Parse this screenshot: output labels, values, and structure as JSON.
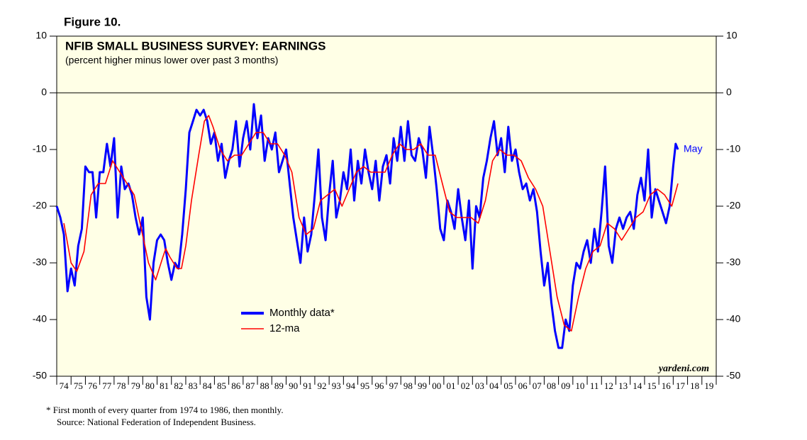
{
  "chart_data": {
    "type": "line",
    "figure_label": "Figure 10.",
    "title": "NFIB SMALL BUSINESS SURVEY: EARNINGS",
    "subtitle": "(percent higher minus lower over past 3 months)",
    "annotation": "May",
    "source_mark": "yardeni.com",
    "footnote": "*   First month of every quarter from 1974 to 1986, then monthly.",
    "source": "Source: National Federation of Independent Business.",
    "xlim": [
      1974,
      2020
    ],
    "ylim": [
      -50,
      10
    ],
    "yticks": [
      10,
      0,
      -10,
      -20,
      -30,
      -40,
      -50
    ],
    "xticks": [
      {
        "value": 1974,
        "label": "74"
      },
      {
        "value": 1975,
        "label": "75"
      },
      {
        "value": 1976,
        "label": "76"
      },
      {
        "value": 1977,
        "label": "77"
      },
      {
        "value": 1978,
        "label": "78"
      },
      {
        "value": 1979,
        "label": "79"
      },
      {
        "value": 1980,
        "label": "80"
      },
      {
        "value": 1981,
        "label": "81"
      },
      {
        "value": 1982,
        "label": "82"
      },
      {
        "value": 1983,
        "label": "83"
      },
      {
        "value": 1984,
        "label": "84"
      },
      {
        "value": 1985,
        "label": "85"
      },
      {
        "value": 1986,
        "label": "86"
      },
      {
        "value": 1987,
        "label": "87"
      },
      {
        "value": 1988,
        "label": "88"
      },
      {
        "value": 1989,
        "label": "89"
      },
      {
        "value": 1990,
        "label": "90"
      },
      {
        "value": 1991,
        "label": "91"
      },
      {
        "value": 1992,
        "label": "92"
      },
      {
        "value": 1993,
        "label": "93"
      },
      {
        "value": 1994,
        "label": "94"
      },
      {
        "value": 1995,
        "label": "95"
      },
      {
        "value": 1996,
        "label": "96"
      },
      {
        "value": 1997,
        "label": "97"
      },
      {
        "value": 1998,
        "label": "98"
      },
      {
        "value": 1999,
        "label": "99"
      },
      {
        "value": 2000,
        "label": "00"
      },
      {
        "value": 2001,
        "label": "01"
      },
      {
        "value": 2002,
        "label": "02"
      },
      {
        "value": 2003,
        "label": "03"
      },
      {
        "value": 2004,
        "label": "04"
      },
      {
        "value": 2005,
        "label": "05"
      },
      {
        "value": 2006,
        "label": "06"
      },
      {
        "value": 2007,
        "label": "07"
      },
      {
        "value": 2008,
        "label": "08"
      },
      {
        "value": 2009,
        "label": "09"
      },
      {
        "value": 2010,
        "label": "10"
      },
      {
        "value": 2011,
        "label": "11"
      },
      {
        "value": 2012,
        "label": "12"
      },
      {
        "value": 2013,
        "label": "13"
      },
      {
        "value": 2014,
        "label": "14"
      },
      {
        "value": 2015,
        "label": "15"
      },
      {
        "value": 2016,
        "label": "16"
      },
      {
        "value": 2017,
        "label": "17"
      },
      {
        "value": 2018,
        "label": "18"
      },
      {
        "value": 2019,
        "label": "19"
      }
    ],
    "series": [
      {
        "name": "Monthly data*",
        "color": "#0000ff",
        "x": [
          1974,
          1974.25,
          1974.5,
          1974.75,
          1975,
          1975.25,
          1975.5,
          1975.75,
          1976,
          1976.25,
          1976.5,
          1976.75,
          1977,
          1977.25,
          1977.5,
          1977.75,
          1978,
          1978.25,
          1978.5,
          1978.75,
          1979,
          1979.25,
          1979.5,
          1979.75,
          1980,
          1980.25,
          1980.5,
          1980.75,
          1981,
          1981.25,
          1981.5,
          1981.75,
          1982,
          1982.25,
          1982.5,
          1982.75,
          1983,
          1983.25,
          1983.5,
          1983.75,
          1984,
          1984.25,
          1984.5,
          1984.75,
          1985,
          1985.25,
          1985.5,
          1985.75,
          1986,
          1986.25,
          1986.5,
          1986.75,
          1987,
          1987.25,
          1987.5,
          1987.75,
          1988,
          1988.25,
          1988.5,
          1988.75,
          1989,
          1989.25,
          1989.5,
          1989.75,
          1990,
          1990.25,
          1990.5,
          1990.75,
          1991,
          1991.25,
          1991.5,
          1991.75,
          1992,
          1992.25,
          1992.5,
          1992.75,
          1993,
          1993.25,
          1993.5,
          1993.75,
          1994,
          1994.25,
          1994.5,
          1994.75,
          1995,
          1995.25,
          1995.5,
          1995.75,
          1996,
          1996.25,
          1996.5,
          1996.75,
          1997,
          1997.25,
          1997.5,
          1997.75,
          1998,
          1998.25,
          1998.5,
          1998.75,
          1999,
          1999.25,
          1999.5,
          1999.75,
          2000,
          2000.25,
          2000.5,
          2000.75,
          2001,
          2001.25,
          2001.5,
          2001.75,
          2002,
          2002.25,
          2002.5,
          2002.75,
          2003,
          2003.25,
          2003.5,
          2003.75,
          2004,
          2004.25,
          2004.5,
          2004.75,
          2005,
          2005.25,
          2005.5,
          2005.75,
          2006,
          2006.25,
          2006.5,
          2006.75,
          2007,
          2007.25,
          2007.5,
          2007.75,
          2008,
          2008.25,
          2008.5,
          2008.75,
          2009,
          2009.25,
          2009.5,
          2009.75,
          2010,
          2010.25,
          2010.5,
          2010.75,
          2011,
          2011.25,
          2011.5,
          2011.75,
          2012,
          2012.25,
          2012.5,
          2012.75,
          2013,
          2013.25,
          2013.5,
          2013.75,
          2014,
          2014.25,
          2014.5,
          2014.75,
          2015,
          2015.25,
          2015.5,
          2015.75,
          2016,
          2016.25,
          2016.5,
          2016.75,
          2017,
          2017.17,
          2017.33
        ],
        "values": [
          -20,
          -22,
          -25,
          -35,
          -31,
          -34,
          -27,
          -24,
          -13,
          -14,
          -14,
          -22,
          -14,
          -14,
          -9,
          -13,
          -8,
          -22,
          -13,
          -17,
          -16,
          -18,
          -22,
          -25,
          -22,
          -36,
          -40,
          -30,
          -26,
          -25,
          -26,
          -30,
          -33,
          -30,
          -31,
          -25,
          -17,
          -7,
          -5,
          -3,
          -4,
          -3,
          -5,
          -9,
          -7,
          -12,
          -9,
          -15,
          -12,
          -10,
          -5,
          -13,
          -8,
          -5,
          -10,
          -2,
          -8,
          -4,
          -12,
          -8,
          -10,
          -7,
          -14,
          -12,
          -10,
          -16,
          -22,
          -26,
          -30,
          -22,
          -28,
          -25,
          -18,
          -10,
          -22,
          -26,
          -18,
          -12,
          -22,
          -19,
          -14,
          -17,
          -10,
          -19,
          -12,
          -16,
          -10,
          -14,
          -17,
          -12,
          -19,
          -13,
          -11,
          -16,
          -8,
          -12,
          -6,
          -12,
          -5,
          -11,
          -12,
          -8,
          -10,
          -15,
          -6,
          -11,
          -17,
          -24,
          -26,
          -19,
          -21,
          -24,
          -17,
          -22,
          -26,
          -19,
          -31,
          -20,
          -22,
          -15,
          -12,
          -8,
          -5,
          -11,
          -8,
          -14,
          -6,
          -12,
          -10,
          -14,
          -17,
          -16,
          -19,
          -17,
          -21,
          -28,
          -34,
          -30,
          -37,
          -42,
          -45,
          -45,
          -40,
          -42,
          -34,
          -30,
          -31,
          -28,
          -26,
          -30,
          -24,
          -28,
          -21,
          -13,
          -27,
          -30,
          -24,
          -22,
          -24,
          -22,
          -21,
          -24,
          -18,
          -15,
          -19,
          -10,
          -22,
          -17,
          -19,
          -21,
          -23,
          -20,
          -13,
          -9,
          -10
        ]
      },
      {
        "name": "12-ma",
        "color": "#ff0000",
        "x": [
          1974.5,
          1975,
          1975.4,
          1975.9,
          1976.4,
          1976.9,
          1977.4,
          1977.9,
          1978.4,
          1978.9,
          1979.4,
          1979.9,
          1980.4,
          1980.9,
          1981.4,
          1981.6,
          1981.9,
          1982.4,
          1982.7,
          1983,
          1983.4,
          1983.9,
          1984.3,
          1984.6,
          1984.9,
          1985.4,
          1985.9,
          1986.4,
          1986.9,
          1987.4,
          1987.9,
          1988.4,
          1988.9,
          1989.4,
          1989.9,
          1990.4,
          1990.9,
          1991.4,
          1991.9,
          1992.4,
          1992.9,
          1993.4,
          1993.9,
          1994.4,
          1994.9,
          1995.4,
          1995.9,
          1996.4,
          1996.9,
          1997.4,
          1997.9,
          1998.4,
          1998.9,
          1999.4,
          1999.9,
          2000.4,
          2000.9,
          2001.4,
          2001.9,
          2002.4,
          2002.9,
          2003.4,
          2003.9,
          2004.4,
          2004.9,
          2005.4,
          2005.9,
          2006.4,
          2006.9,
          2007.4,
          2007.9,
          2008.4,
          2008.9,
          2009.4,
          2009.9,
          2010.4,
          2010.9,
          2011.4,
          2011.9,
          2012.4,
          2012.9,
          2013.4,
          2013.9,
          2014.4,
          2014.9,
          2015.4,
          2015.9,
          2016.4,
          2016.9,
          2017.33
        ],
        "values": [
          -23,
          -30,
          -31.5,
          -28,
          -18,
          -16,
          -16,
          -12,
          -14,
          -16,
          -18,
          -24,
          -30,
          -33,
          -29,
          -27.5,
          -29,
          -31,
          -31,
          -27,
          -19,
          -11,
          -5,
          -4,
          -6,
          -10,
          -12,
          -11,
          -11,
          -9,
          -7,
          -7,
          -9,
          -9,
          -11,
          -14,
          -22,
          -25,
          -24,
          -19,
          -18,
          -17,
          -20,
          -17,
          -14,
          -13,
          -14,
          -14,
          -14,
          -11,
          -9,
          -10,
          -10,
          -9,
          -11,
          -11,
          -16,
          -21,
          -22,
          -22,
          -22,
          -23,
          -19,
          -12,
          -10,
          -11,
          -11,
          -12,
          -15,
          -17,
          -20,
          -28,
          -36,
          -41,
          -42,
          -36,
          -31,
          -28,
          -27,
          -23,
          -24,
          -26,
          -24,
          -22,
          -21,
          -18,
          -17,
          -18,
          -20,
          -16
        ]
      }
    ]
  }
}
